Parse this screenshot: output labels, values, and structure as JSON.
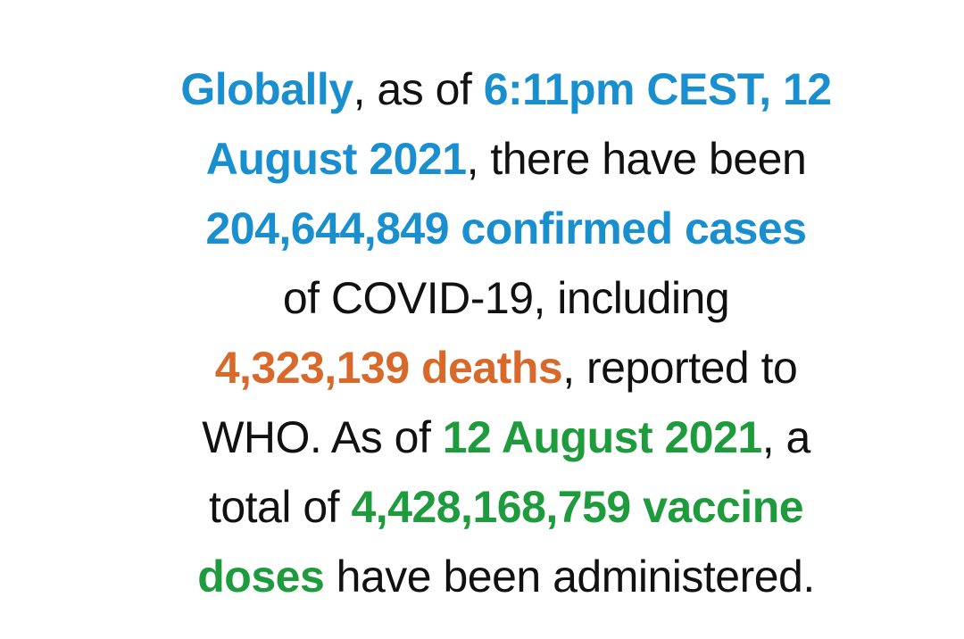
{
  "paragraph": {
    "lines": [
      [
        {
          "text": "Globally",
          "color": "#1a8fd0",
          "bold": true
        },
        {
          "text": ", as of ",
          "color": "#111111",
          "bold": false
        },
        {
          "text": "6:11pm CEST, 12",
          "color": "#1a8fd0",
          "bold": true
        }
      ],
      [
        {
          "text": "August 2021",
          "color": "#1a8fd0",
          "bold": true
        },
        {
          "text": ", there have been",
          "color": "#111111",
          "bold": false
        }
      ],
      [
        {
          "text": "204,644,849 confirmed cases",
          "color": "#1a8fd0",
          "bold": true
        }
      ],
      [
        {
          "text": "of COVID-19, including",
          "color": "#111111",
          "bold": false
        }
      ],
      [
        {
          "text": "4,323,139 deaths",
          "color": "#d9692a",
          "bold": true
        },
        {
          "text": ", reported to",
          "color": "#111111",
          "bold": false
        }
      ],
      [
        {
          "text": "WHO. As of ",
          "color": "#111111",
          "bold": false
        },
        {
          "text": "12 August 2021",
          "color": "#1e9b3c",
          "bold": true
        },
        {
          "text": ", a",
          "color": "#111111",
          "bold": false
        }
      ],
      [
        {
          "text": "total of ",
          "color": "#111111",
          "bold": false
        },
        {
          "text": "4,428,168,759 vaccine",
          "color": "#1e9b3c",
          "bold": true
        }
      ],
      [
        {
          "text": "doses",
          "color": "#1e9b3c",
          "bold": true
        },
        {
          "text": " have been administered.",
          "color": "#111111",
          "bold": false
        }
      ]
    ]
  }
}
